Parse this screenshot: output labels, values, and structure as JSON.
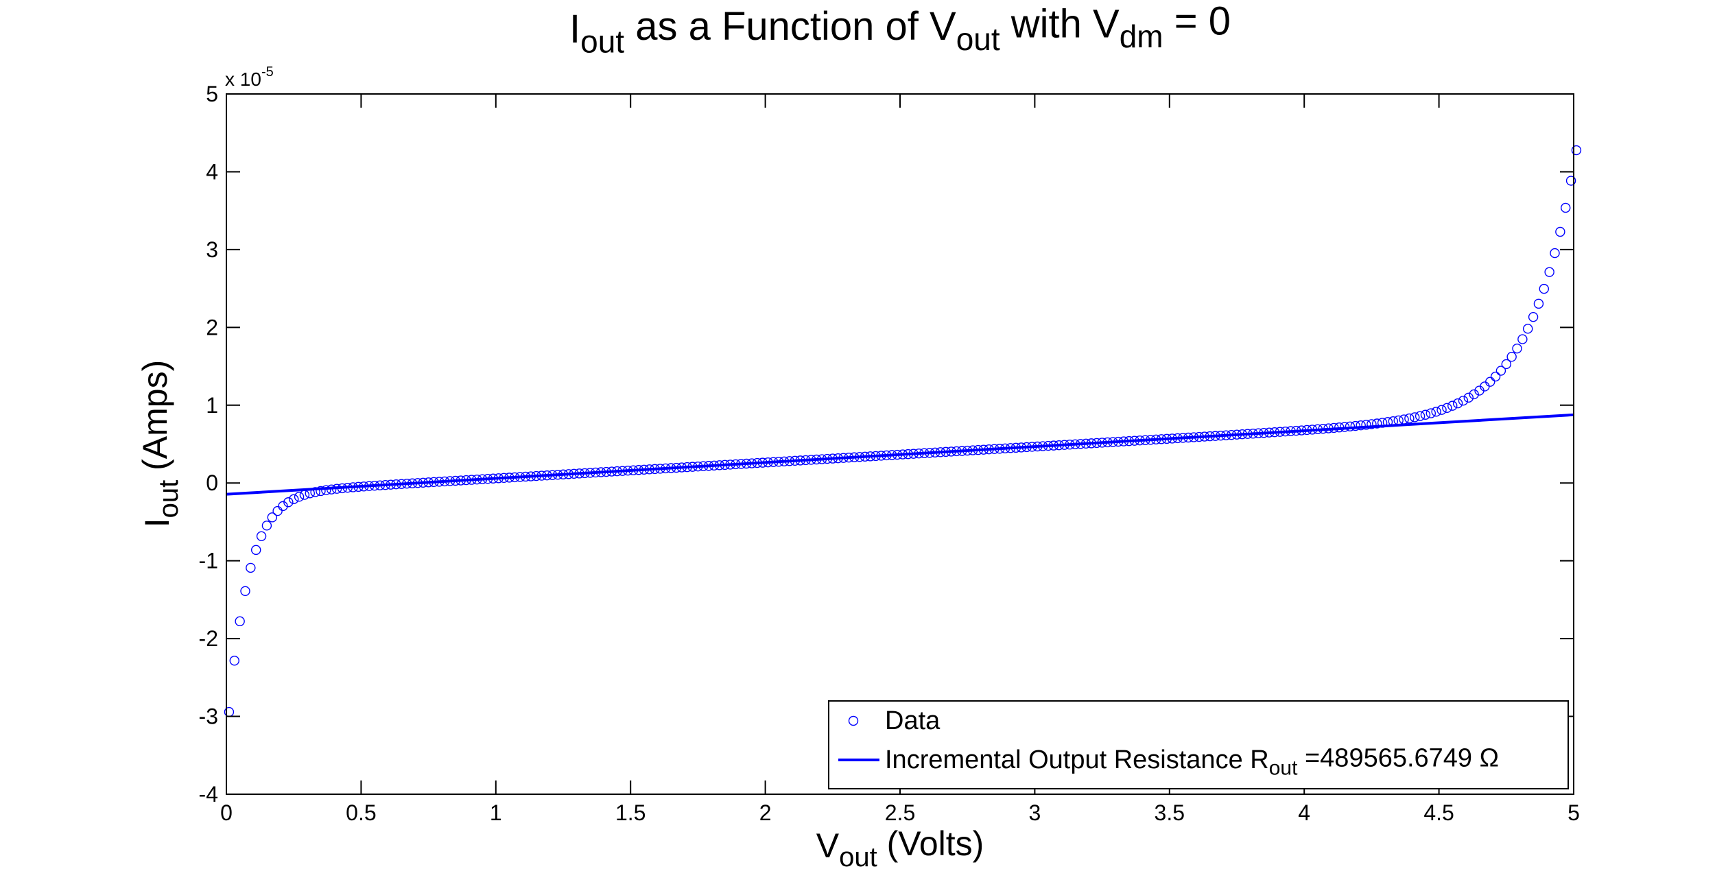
{
  "chart_data": {
    "type": "scatter",
    "title": {
      "parts": [
        {
          "text": "I",
          "sub": false
        },
        {
          "text": "out",
          "sub": true
        },
        {
          "text": " as a Function of V",
          "sub": false
        },
        {
          "text": "out",
          "sub": true
        },
        {
          "text": " with V",
          "sub": false
        },
        {
          "text": "dm",
          "sub": true
        },
        {
          "text": " = 0",
          "sub": false
        }
      ]
    },
    "xlabel": {
      "parts": [
        {
          "text": "V",
          "sub": false
        },
        {
          "text": "out",
          "sub": true
        },
        {
          "text": " (Volts)",
          "sub": false
        }
      ]
    },
    "ylabel": {
      "parts": [
        {
          "text": "I",
          "sub": false
        },
        {
          "text": "out",
          "sub": true
        },
        {
          "text": " (Amps)",
          "sub": false
        }
      ]
    },
    "xlim": [
      0,
      5
    ],
    "ylim": [
      -4e-05,
      5e-05
    ],
    "x_ticks": [
      0,
      0.5,
      1,
      1.5,
      2,
      2.5,
      3,
      3.5,
      4,
      4.5,
      5
    ],
    "x_tick_labels": [
      "0",
      "0.5",
      "1",
      "1.5",
      "2",
      "2.5",
      "3",
      "3.5",
      "4",
      "4.5",
      "5"
    ],
    "y_ticks": [
      -4,
      -3,
      -2,
      -1,
      0,
      1,
      2,
      3,
      4,
      5
    ],
    "y_tick_labels": [
      "-4",
      "-3",
      "-2",
      "-1",
      "0",
      "1",
      "2",
      "3",
      "4",
      "5"
    ],
    "y_exponent_label": {
      "base": "x 10",
      "exponent": "-5"
    },
    "y_scale_factor": 1e-05,
    "grid": false,
    "legend_position": "bottom-right",
    "series": [
      {
        "name": "Data",
        "style": "markers-circle",
        "color": "#0000ff",
        "model": {
          "x_start": 0.01,
          "x_end": 5.0,
          "x_step": 0.02,
          "linear_intercept": -1.45e-06,
          "linear_slope": 2.04e-06,
          "low_amplitude": 2.8e-05,
          "low_x0": 0.01,
          "low_decay": 0.075,
          "high_amplitude": 3.2e-05,
          "high_x0": 5.0,
          "high_decay": 0.165
        }
      },
      {
        "name": "Incremental Output Resistance R_out =489565.6749 Ω",
        "style": "line",
        "color": "#0000ff",
        "x": [
          0,
          5
        ],
        "y": [
          -1.45e-06,
          8.763e-06
        ]
      }
    ],
    "legend": {
      "entries": [
        {
          "parts": [
            {
              "text": "Data",
              "sub": false
            }
          ]
        },
        {
          "parts": [
            {
              "text": "Incremental Output Resistance R",
              "sub": false
            },
            {
              "text": "out",
              "sub": true
            },
            {
              "text": " =489565.6749 Ω",
              "sub": false
            }
          ]
        }
      ]
    }
  }
}
